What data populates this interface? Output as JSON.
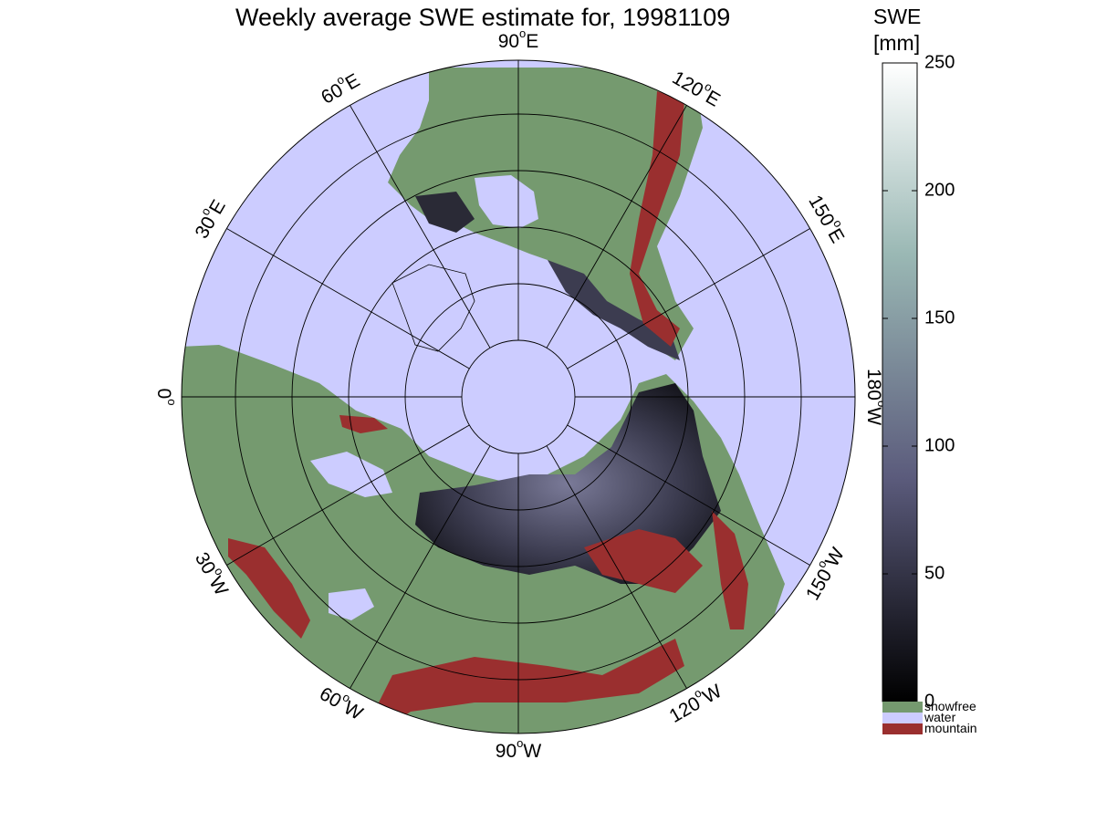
{
  "title": "Weekly average SWE estimate for, 19981109",
  "colorbar": {
    "title_line1": "SWE",
    "title_line2": "[mm]",
    "ticks": [
      {
        "value": 0,
        "label": "0"
      },
      {
        "value": 50,
        "label": "50"
      },
      {
        "value": 100,
        "label": "100"
      },
      {
        "value": 150,
        "label": "150"
      },
      {
        "value": 200,
        "label": "200"
      },
      {
        "value": 250,
        "label": "250"
      }
    ],
    "range": [
      0,
      250
    ],
    "colors": {
      "low": "#000000",
      "mid": "#5b5b7c",
      "high": "#ffffff"
    },
    "categories": [
      {
        "label": "snowfree",
        "color": "#759a6f"
      },
      {
        "label": "water",
        "color": "#ccccff"
      },
      {
        "label": "mountain",
        "color": "#9a2f2f"
      }
    ]
  },
  "map": {
    "projection": "north-polar",
    "colors": {
      "water": "#ccccff",
      "land": "#759a6f",
      "mountain": "#9a2f2f",
      "snow": "#2e2e40",
      "ice": "#ccccff"
    },
    "longitude_labels": [
      {
        "deg": "90",
        "dir": "W",
        "lon": -90
      },
      {
        "deg": "120",
        "dir": "W",
        "lon": -120
      },
      {
        "deg": "150",
        "dir": "W",
        "lon": -150
      },
      {
        "deg": "180",
        "dir": "W",
        "lon": 180
      },
      {
        "deg": "150",
        "dir": "E",
        "lon": 150
      },
      {
        "deg": "120",
        "dir": "E",
        "lon": 120
      },
      {
        "deg": "90",
        "dir": "E",
        "lon": 90
      },
      {
        "deg": "60",
        "dir": "E",
        "lon": 60
      },
      {
        "deg": "30",
        "dir": "E",
        "lon": 30
      },
      {
        "deg": "0",
        "dir": "",
        "lon": 0
      },
      {
        "deg": "30",
        "dir": "W",
        "lon": -30
      },
      {
        "deg": "60",
        "dir": "W",
        "lon": -60
      }
    ],
    "meridian_step_deg": 30,
    "parallel_rings": 5
  }
}
